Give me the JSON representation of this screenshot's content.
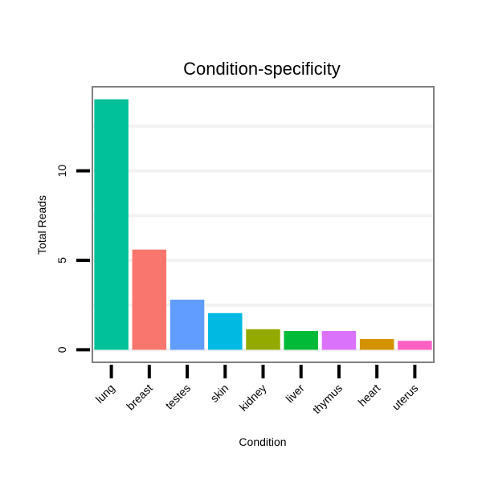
{
  "chart_data": {
    "type": "bar",
    "title": "Condition-specificity",
    "xlabel": "Condition",
    "ylabel": "Total Reads",
    "categories": [
      "lung",
      "breast",
      "testes",
      "skin",
      "kidney",
      "liver",
      "thymus",
      "heart",
      "uterus"
    ],
    "values": [
      14,
      5.6,
      2.8,
      2.05,
      1.15,
      1.05,
      1.05,
      0.6,
      0.5
    ],
    "colors": [
      "#00C19A",
      "#F8766D",
      "#619CFF",
      "#00B9E3",
      "#93AA00",
      "#00BA38",
      "#DB72FB",
      "#D39200",
      "#FF61C3"
    ],
    "ylim": [
      -0.7,
      14.7
    ],
    "yticks": [
      0,
      5,
      10
    ],
    "grid": true,
    "legend": "none"
  }
}
